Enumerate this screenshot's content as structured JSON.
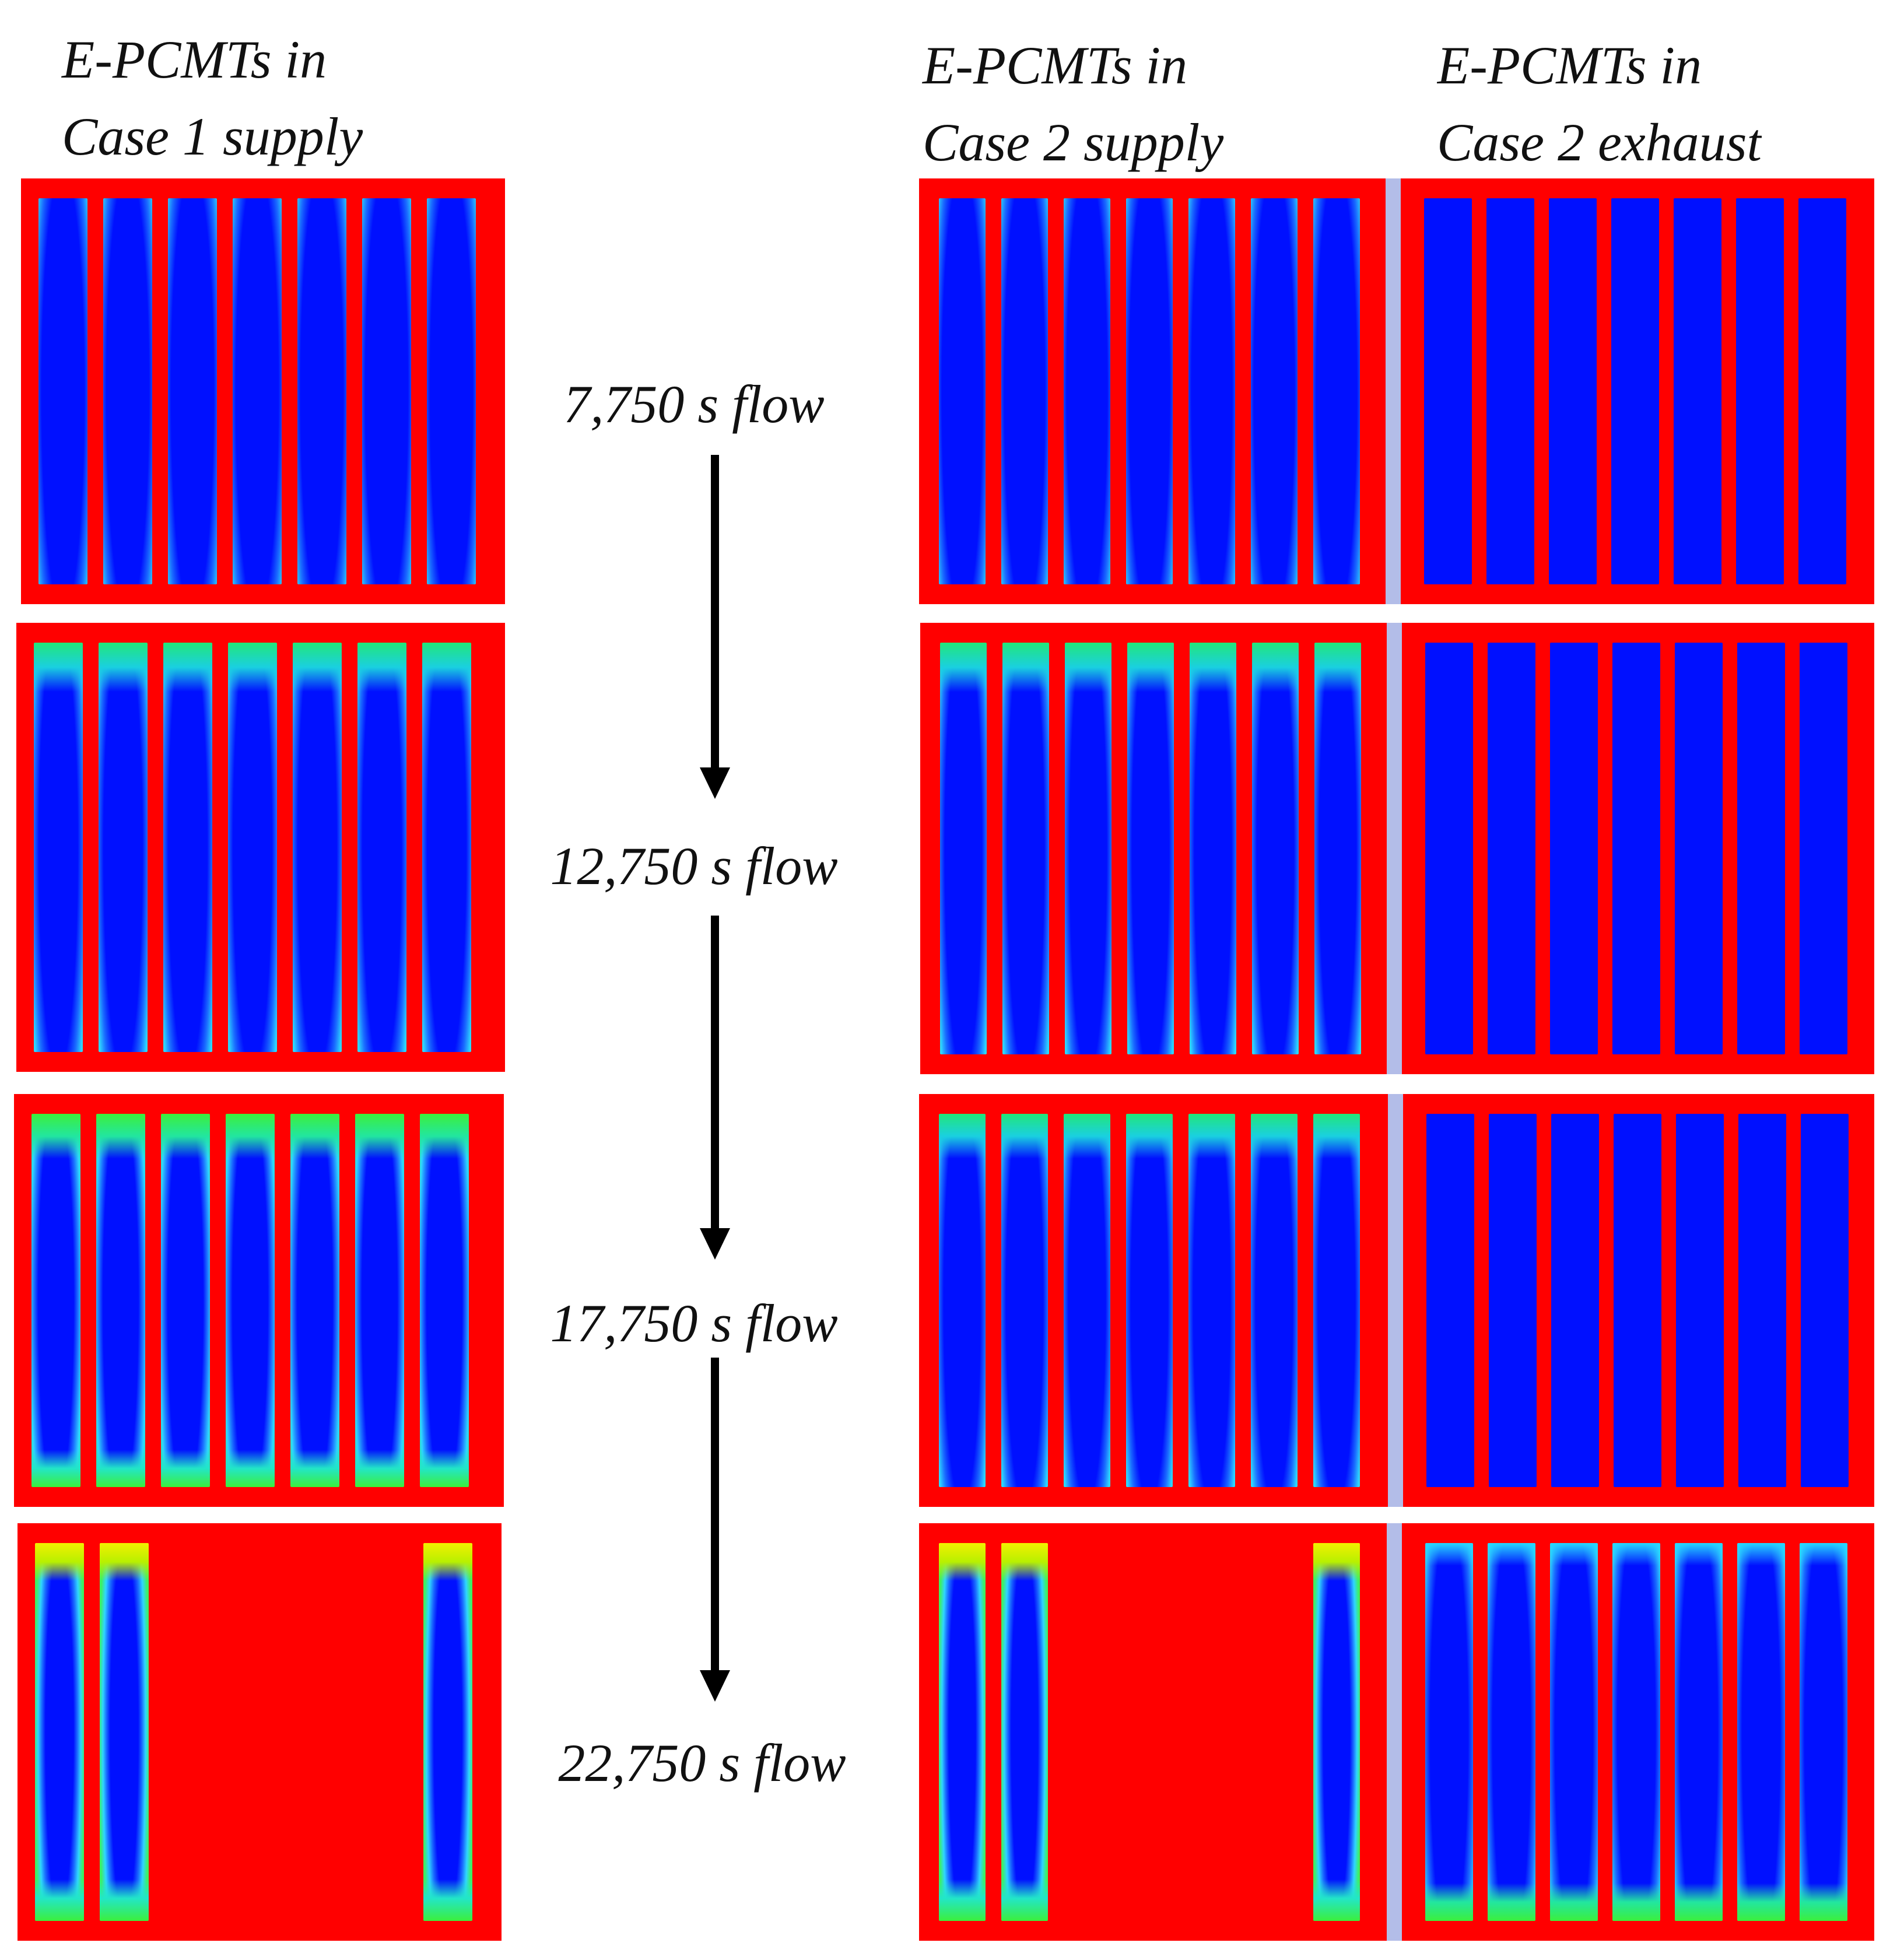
{
  "columns": {
    "case1_supply": {
      "line1": "E-PCMTs in",
      "line2": "Case 1 supply"
    },
    "case2_supply": {
      "line1": "E-PCMTs in",
      "line2": "Case 2 supply"
    },
    "case2_exhaust": {
      "line1": "E-PCMTs in",
      "line2": "Case 2 exhaust"
    }
  },
  "time_steps": [
    {
      "label": "7,750 s flow"
    },
    {
      "label": "12,750 s flow"
    },
    {
      "label": "17,750 s flow"
    },
    {
      "label": "22,750 s flow"
    }
  ],
  "legend_colors": {
    "melted": "#ff0000",
    "solid": "#0000ff",
    "divider": "#b3bde8"
  },
  "tube_states": {
    "case1_supply": [
      [
        "early",
        "early",
        "early",
        "early",
        "early",
        "early",
        "early"
      ],
      [
        "mid",
        "mid",
        "mid",
        "mid",
        "mid",
        "mid",
        "mid"
      ],
      [
        "late",
        "late",
        "late",
        "late",
        "late",
        "late",
        "late"
      ],
      [
        "final",
        "final",
        "melted",
        "melted",
        "melted",
        "melted",
        "final"
      ]
    ],
    "case2_supply": [
      [
        "early",
        "early",
        "early",
        "early",
        "early",
        "early",
        "early"
      ],
      [
        "mid",
        "mid",
        "mid",
        "mid",
        "mid",
        "mid",
        "mid"
      ],
      [
        "mid",
        "mid",
        "mid",
        "mid",
        "mid",
        "mid",
        "mid"
      ],
      [
        "final",
        "final",
        "melted",
        "melted",
        "melted",
        "melted",
        "final"
      ]
    ],
    "case2_exhaust": [
      [
        "cold",
        "cold",
        "cold",
        "cold",
        "cold",
        "cold",
        "cold"
      ],
      [
        "cold",
        "cold",
        "cold",
        "cold",
        "cold",
        "cold",
        "cold"
      ],
      [
        "cold",
        "cold",
        "cold",
        "cold",
        "cold",
        "cold",
        "cold"
      ],
      [
        "warm",
        "warm",
        "warm",
        "warm",
        "warm",
        "warm",
        "warm"
      ]
    ]
  }
}
